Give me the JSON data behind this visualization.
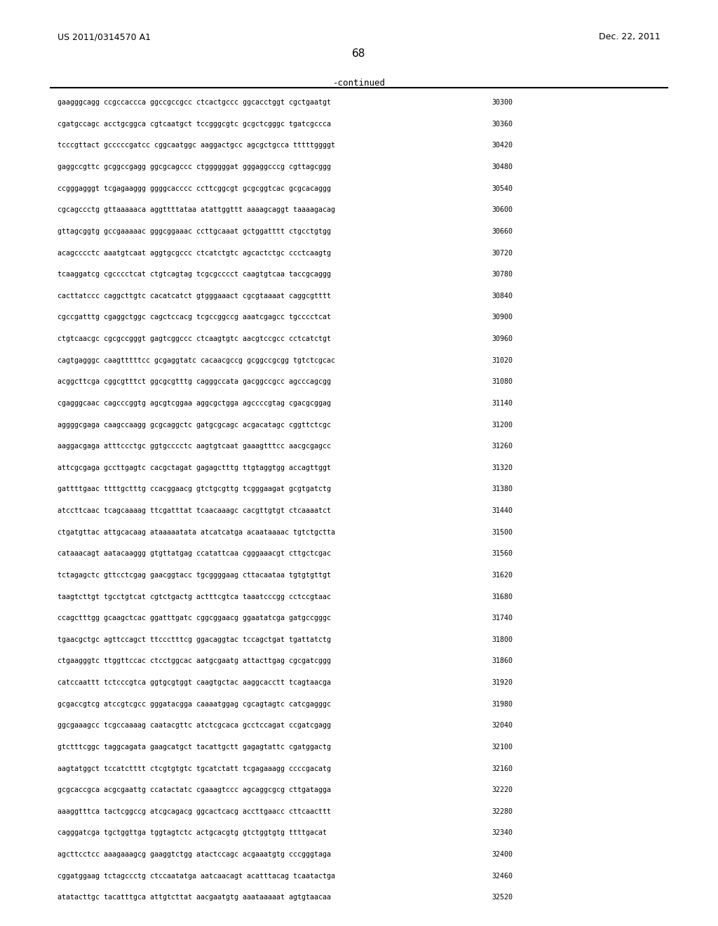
{
  "header_left": "US 2011/0314570 A1",
  "header_right": "Dec. 22, 2011",
  "page_number": "68",
  "continued_label": "-continued",
  "background_color": "#ffffff",
  "text_color": "#000000",
  "sequences": [
    {
      "seq": "gaagggcagg ccgccaccca ggccgccgcc ctcactgccc ggcacctggt cgctgaatgt",
      "num": "30300"
    },
    {
      "seq": "cgatgccagc acctgcggca cgtcaatgct tccgggcgtc gcgctcgggc tgatcgccca",
      "num": "30360"
    },
    {
      "seq": "tcccgttact gcccccgatcc cggcaatggc aaggactgcc agcgctgcca tttttggggt",
      "num": "30420"
    },
    {
      "seq": "gaggccgttc gcggccgagg ggcgcagccc ctggggggat gggaggcccg cgttagcggg",
      "num": "30480"
    },
    {
      "seq": "ccgggagggt tcgagaaggg ggggcacccc ccttcggcgt gcgcggtcac gcgcacaggg",
      "num": "30540"
    },
    {
      "seq": "cgcagccctg gttaaaaaca aggttttataa atattggttt aaaagcaggt taaaagacag",
      "num": "30600"
    },
    {
      "seq": "gttagcggtg gccgaaaaac gggcggaaac ccttgcaaat gctggatttt ctgcctgtgg",
      "num": "30660"
    },
    {
      "seq": "acagcccctc aaatgtcaat aggtgcgccc ctcatctgtc agcactctgc ccctcaagtg",
      "num": "30720"
    },
    {
      "seq": "tcaaggatcg cgcccctcat ctgtcagtag tcgcgcccct caagtgtcaa taccgcaggg",
      "num": "30780"
    },
    {
      "seq": "cacttatccc caggcttgtc cacatcatct gtgggaaact cgcgtaaaat caggcgtttt",
      "num": "30840"
    },
    {
      "seq": "cgccgatttg cgaggctggc cagctccacg tcgccggccg aaatcgagcc tgcccctcat",
      "num": "30900"
    },
    {
      "seq": "ctgtcaacgc cgcgccgggt gagtcggccc ctcaagtgtc aacgtccgcc cctcatctgt",
      "num": "30960"
    },
    {
      "seq": "cagtgagggc caagtttttcc gcgaggtatc cacaacgccg gcggccgcgg tgtctcgcac",
      "num": "31020"
    },
    {
      "seq": "acggcttcga cggcgtttct ggcgcgtttg cagggccata gacggccgcc agcccagcgg",
      "num": "31080"
    },
    {
      "seq": "cgagggcaac cagcccggtg agcgtcggaa aggcgctgga agccccgtag cgacgcggag",
      "num": "31140"
    },
    {
      "seq": "aggggcgaga caagccaagg gcgcaggctc gatgcgcagc acgacatagc cggttctcgc",
      "num": "31200"
    },
    {
      "seq": "aaggacgaga atttccctgc ggtgcccctc aagtgtcaat gaaagtttcc aacgcgagcc",
      "num": "31260"
    },
    {
      "seq": "attcgcgaga gccttgagtc cacgctagat gagagctttg ttgtaggtgg accagttggt",
      "num": "31320"
    },
    {
      "seq": "gattttgaac ttttgctttg ccacggaacg gtctgcgttg tcgggaagat gcgtgatctg",
      "num": "31380"
    },
    {
      "seq": "atccttcaac tcagcaaaag ttcgatttat tcaacaaagc cacgttgtgt ctcaaaatct",
      "num": "31440"
    },
    {
      "seq": "ctgatgttac attgcacaag ataaaaatatа atcatcatga acaataaaac tgtctgctta",
      "num": "31500"
    },
    {
      "seq": "cataaacagt aatacaaggg gtgttatgag ccatattcaa cgggaaacgt cttgctcgac",
      "num": "31560"
    },
    {
      "seq": "tctagagctc gttcctcgag gaacggtacc tgcggggaag cttacaataa tgtgtgttgt",
      "num": "31620"
    },
    {
      "seq": "taagtcttgt tgcctgtcat cgtctgactg actttcgtca taaatcccgg cctccgtaac",
      "num": "31680"
    },
    {
      "seq": "ccagctttgg gcaagctcac ggatttgatc cggcggaacg ggaatatcga gatgccgggc",
      "num": "31740"
    },
    {
      "seq": "tgaacgctgc agttccagct ttccctttcg ggacaggtac tccagctgat tgattatctg",
      "num": "31800"
    },
    {
      "seq": "ctgaagggtc ttggttccac ctcctggcac aatgcgaatg attacttgag cgcgatcggg",
      "num": "31860"
    },
    {
      "seq": "catccaattt tctcccgtca ggtgcgtggt caagtgctac aaggcacctt tcagtaacga",
      "num": "31920"
    },
    {
      "seq": "gcgaccgtcg atccgtcgcc gggatacgga caaaatggag cgcagtagtc catcgagggc",
      "num": "31980"
    },
    {
      "seq": "ggcgaaagcc tcgccaaaag caatacgttc atctcgcaca gcctccagat ccgatcgagg",
      "num": "32040"
    },
    {
      "seq": "gtctttcggc taggcagata gaagcatgct tacattgctt gagagtattc cgatggactg",
      "num": "32100"
    },
    {
      "seq": "aagtatggct tccatctttt ctcgtgtgtc tgcatctatt tcgagaaagg ccccgacatg",
      "num": "32160"
    },
    {
      "seq": "gcgcaccgca acgcgaattg ccatactatc cgaaagtccc agcaggcgcg cttgatagga",
      "num": "32220"
    },
    {
      "seq": "aaaggtttca tactcggccg atcgcagacg ggcactcacg accttgaacc cttcaacttt",
      "num": "32280"
    },
    {
      "seq": "cagggatcga tgctggttga tggtagtctc actgcacgtg gtctggtgtg ttttgacat",
      "num": "32340"
    },
    {
      "seq": "agcttcctcc aaagaaagcg gaaggtctgg atactccagc acgaaatgtg cccgggtaga",
      "num": "32400"
    },
    {
      "seq": "cggatggaag tctagccctg ctccaatatga aatcaacagt acatttacag tcaatactga",
      "num": "32460"
    },
    {
      "seq": "atatacttgc tacatttgca attgtcttat aacgaatgtg aaataaaaat agtgtaacaa",
      "num": "32520"
    }
  ]
}
